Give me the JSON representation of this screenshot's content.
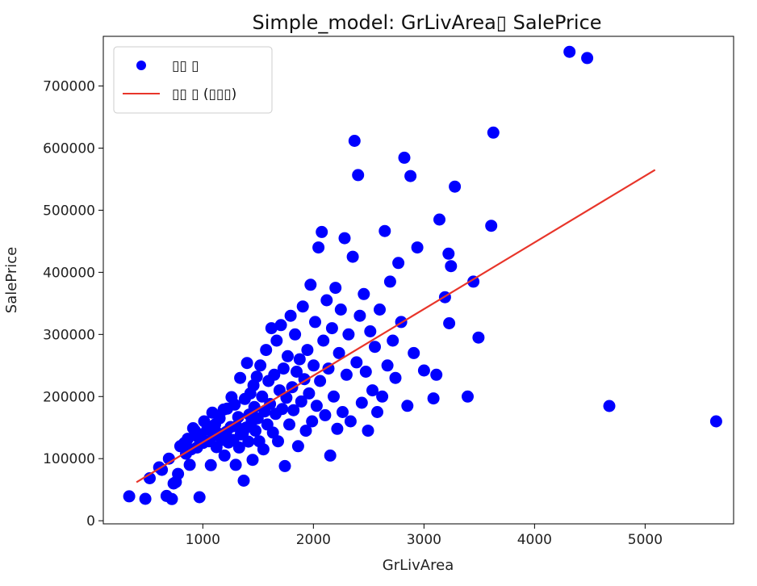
{
  "chart_data": {
    "type": "scatter",
    "title": "Simple_model: GrLivArea▯ SalePrice",
    "xlabel": "GrLivArea",
    "ylabel": "SalePrice",
    "xlim": [
      100,
      5800
    ],
    "ylim": [
      -5000,
      780000
    ],
    "xticks": [
      1000,
      2000,
      3000,
      4000,
      5000
    ],
    "yticks": [
      0,
      100000,
      200000,
      300000,
      400000,
      500000,
      600000,
      700000
    ],
    "xtick_labels": [
      "1000",
      "2000",
      "3000",
      "4000",
      "5000"
    ],
    "ytick_labels": [
      "0",
      "100000",
      "200000",
      "300000",
      "400000",
      "500000",
      "600000",
      "700000"
    ],
    "grid": false,
    "legend": {
      "placement": "top-left",
      "entries": [
        "▯▯ ▯",
        "▯▯ ▯ (▯▯▯)"
      ]
    },
    "series": [
      {
        "name": "▯▯ ▯",
        "kind": "scatter",
        "color": "#0000ff",
        "points": [
          [
            334,
            39300
          ],
          [
            480,
            35311
          ],
          [
            520,
            68400
          ],
          [
            605,
            86000
          ],
          [
            630,
            82000
          ],
          [
            672,
            40000
          ],
          [
            693,
            100000
          ],
          [
            720,
            34900
          ],
          [
            736,
            60000
          ],
          [
            756,
            62383
          ],
          [
            776,
            75500
          ],
          [
            796,
            120000
          ],
          [
            832,
            125000
          ],
          [
            848,
            108000
          ],
          [
            864,
            132000
          ],
          [
            882,
            90000
          ],
          [
            894,
            115000
          ],
          [
            912,
            149000
          ],
          [
            928,
            145000
          ],
          [
            948,
            118000
          ],
          [
            960,
            134432
          ],
          [
            970,
            37900
          ],
          [
            984,
            139000
          ],
          [
            1004,
            125500
          ],
          [
            1012,
            160000
          ],
          [
            1040,
            147000
          ],
          [
            1056,
            128000
          ],
          [
            1072,
            89500
          ],
          [
            1086,
            174000
          ],
          [
            1097,
            137000
          ],
          [
            1111,
            155000
          ],
          [
            1124,
            118500
          ],
          [
            1144,
            140000
          ],
          [
            1152,
            165000
          ],
          [
            1176,
            130250
          ],
          [
            1188,
            179000
          ],
          [
            1196,
            105000
          ],
          [
            1212,
            143000
          ],
          [
            1220,
            180500
          ],
          [
            1232,
            126000
          ],
          [
            1252,
            151000
          ],
          [
            1260,
            199000
          ],
          [
            1276,
            130000
          ],
          [
            1288,
            187000
          ],
          [
            1298,
            90000
          ],
          [
            1304,
            152000
          ],
          [
            1320,
            167000
          ],
          [
            1328,
            118000
          ],
          [
            1338,
            230000
          ],
          [
            1344,
            139000
          ],
          [
            1362,
            141000
          ],
          [
            1370,
            64500
          ],
          [
            1380,
            196000
          ],
          [
            1392,
            150000
          ],
          [
            1400,
            254000
          ],
          [
            1412,
            127500
          ],
          [
            1420,
            171000
          ],
          [
            1430,
            205000
          ],
          [
            1442,
            160000
          ],
          [
            1450,
            98000
          ],
          [
            1458,
            218000
          ],
          [
            1466,
            183000
          ],
          [
            1476,
            145000
          ],
          [
            1488,
            232000
          ],
          [
            1496,
            165000
          ],
          [
            1510,
            128000
          ],
          [
            1520,
            250000
          ],
          [
            1536,
            199900
          ],
          [
            1548,
            115000
          ],
          [
            1560,
            176000
          ],
          [
            1572,
            275000
          ],
          [
            1584,
            155000
          ],
          [
            1594,
            225000
          ],
          [
            1608,
            188000
          ],
          [
            1620,
            310000
          ],
          [
            1634,
            142000
          ],
          [
            1646,
            235000
          ],
          [
            1658,
            172000
          ],
          [
            1668,
            290000
          ],
          [
            1680,
            128000
          ],
          [
            1694,
            210000
          ],
          [
            1706,
            315000
          ],
          [
            1718,
            180000
          ],
          [
            1730,
            245000
          ],
          [
            1742,
            88000
          ],
          [
            1756,
            198000
          ],
          [
            1768,
            265000
          ],
          [
            1782,
            155000
          ],
          [
            1794,
            330000
          ],
          [
            1808,
            215000
          ],
          [
            1820,
            178000
          ],
          [
            1834,
            300000
          ],
          [
            1848,
            240000
          ],
          [
            1862,
            120000
          ],
          [
            1876,
            260000
          ],
          [
            1890,
            192000
          ],
          [
            1904,
            345000
          ],
          [
            1918,
            228000
          ],
          [
            1932,
            145000
          ],
          [
            1946,
            275000
          ],
          [
            1960,
            205000
          ],
          [
            1974,
            380000
          ],
          [
            1988,
            160000
          ],
          [
            2002,
            250000
          ],
          [
            2016,
            320000
          ],
          [
            2030,
            185000
          ],
          [
            2046,
            440000
          ],
          [
            2060,
            225000
          ],
          [
            2076,
            465000
          ],
          [
            2090,
            290000
          ],
          [
            2106,
            170000
          ],
          [
            2120,
            355000
          ],
          [
            2136,
            245000
          ],
          [
            2152,
            105000
          ],
          [
            2168,
            310000
          ],
          [
            2184,
            200000
          ],
          [
            2200,
            375000
          ],
          [
            2216,
            148000
          ],
          [
            2232,
            270000
          ],
          [
            2248,
            340000
          ],
          [
            2264,
            175000
          ],
          [
            2282,
            455000
          ],
          [
            2300,
            235000
          ],
          [
            2318,
            300000
          ],
          [
            2336,
            160000
          ],
          [
            2356,
            425000
          ],
          [
            2372,
            611657
          ],
          [
            2390,
            255000
          ],
          [
            2404,
            556581
          ],
          [
            2420,
            330000
          ],
          [
            2438,
            190000
          ],
          [
            2456,
            365000
          ],
          [
            2474,
            240000
          ],
          [
            2494,
            145000
          ],
          [
            2514,
            305000
          ],
          [
            2534,
            210000
          ],
          [
            2556,
            280000
          ],
          [
            2578,
            175000
          ],
          [
            2600,
            340000
          ],
          [
            2622,
            200000
          ],
          [
            2646,
            466500
          ],
          [
            2670,
            250000
          ],
          [
            2694,
            385000
          ],
          [
            2718,
            290000
          ],
          [
            2742,
            230000
          ],
          [
            2768,
            415000
          ],
          [
            2794,
            320000
          ],
          [
            2822,
            584500
          ],
          [
            2850,
            185000
          ],
          [
            2878,
            555000
          ],
          [
            2908,
            270000
          ],
          [
            2940,
            440000
          ],
          [
            3000,
            242000
          ],
          [
            3086,
            197000
          ],
          [
            3112,
            235000
          ],
          [
            3140,
            485000
          ],
          [
            3190,
            360000
          ],
          [
            3222,
            430000
          ],
          [
            3228,
            318000
          ],
          [
            3244,
            410000
          ],
          [
            3279,
            538000
          ],
          [
            3395,
            200000
          ],
          [
            3447,
            385000
          ],
          [
            3493,
            295000
          ],
          [
            3608,
            475000
          ],
          [
            3627,
            625000
          ],
          [
            4316,
            755000
          ],
          [
            4476,
            745000
          ],
          [
            4676,
            184750
          ],
          [
            5642,
            160000
          ]
        ]
      },
      {
        "name": "▯▯ ▯ (▯▯▯)",
        "kind": "line",
        "color": "#e8352a",
        "points": [
          [
            400,
            62000
          ],
          [
            5090,
            565000
          ]
        ]
      }
    ]
  }
}
